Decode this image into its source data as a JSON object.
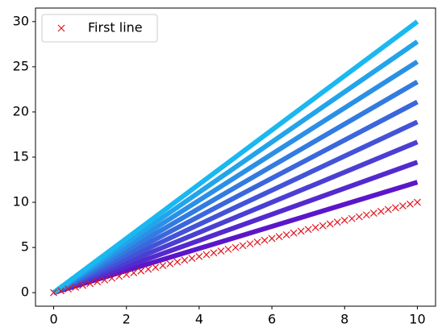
{
  "chart_data": {
    "type": "line",
    "xlim": [
      -0.5,
      10.5
    ],
    "xticks": [
      0,
      2,
      4,
      6,
      8,
      10
    ],
    "ylim": [
      -1.5,
      31.5
    ],
    "yticks": [
      0,
      5,
      10,
      15,
      20,
      25,
      30
    ],
    "legend": "upper left",
    "series": [
      {
        "name": "First line",
        "color": "#e3141e",
        "marker": "x",
        "x": [
          0,
          0.2,
          0.4,
          0.6,
          0.8,
          1,
          1.2,
          1.4,
          1.6,
          1.8,
          2,
          2.2,
          2.4,
          2.6,
          2.8,
          3,
          3.2,
          3.4,
          3.6,
          3.8,
          4,
          4.2,
          4.4,
          4.6,
          4.8,
          5,
          5.2,
          5.4,
          5.6,
          5.8,
          6,
          6.2,
          6.4,
          6.6,
          6.8,
          7,
          7.2,
          7.4,
          7.6,
          7.8,
          8,
          8.2,
          8.4,
          8.6,
          8.8,
          9,
          9.2,
          9.4,
          9.6,
          9.8,
          10
        ],
        "values": [
          0,
          0.2,
          0.4,
          0.6,
          0.8,
          1,
          1.2,
          1.4,
          1.6,
          1.8,
          2,
          2.2,
          2.4,
          2.6,
          2.8,
          3,
          3.2,
          3.4,
          3.6,
          3.8,
          4,
          4.2,
          4.4,
          4.6,
          4.8,
          5,
          5.2,
          5.4,
          5.6,
          5.8,
          6,
          6.2,
          6.4,
          6.6,
          6.8,
          7,
          7.2,
          7.4,
          7.6,
          7.8,
          8,
          8.2,
          8.4,
          8.6,
          8.8,
          9,
          9.2,
          9.4,
          9.6,
          9.8,
          10
        ]
      },
      {
        "color": "#5b16c9",
        "x": [
          0,
          10
        ],
        "values": [
          0,
          12.22
        ]
      },
      {
        "color": "#532ace",
        "x": [
          0,
          10
        ],
        "values": [
          0,
          14.44
        ]
      },
      {
        "color": "#4b3fd3",
        "x": [
          0,
          10
        ],
        "values": [
          0,
          16.67
        ]
      },
      {
        "color": "#4353d8",
        "x": [
          0,
          10
        ],
        "values": [
          0,
          18.89
        ]
      },
      {
        "color": "#3b67dd",
        "x": [
          0,
          10
        ],
        "values": [
          0,
          21.11
        ]
      },
      {
        "color": "#327be1",
        "x": [
          0,
          10
        ],
        "values": [
          0,
          23.33
        ]
      },
      {
        "color": "#2a90e6",
        "x": [
          0,
          10
        ],
        "values": [
          0,
          25.56
        ]
      },
      {
        "color": "#22a4eb",
        "x": [
          0,
          10
        ],
        "values": [
          0,
          27.78
        ]
      },
      {
        "color": "#1ab8f0",
        "x": [
          0,
          10
        ],
        "values": [
          0,
          30
        ]
      }
    ]
  }
}
